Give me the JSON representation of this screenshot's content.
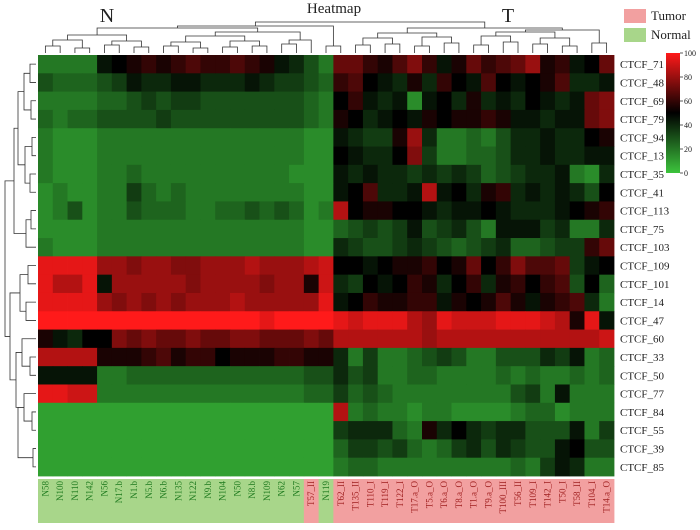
{
  "chart_data": {
    "type": "heatmap",
    "title": "Heatmap",
    "group_labels": {
      "normal_group": "N",
      "tumor_group": "T"
    },
    "legend": {
      "groups": [
        {
          "label": "Tumor",
          "color": "#f2a0a0"
        },
        {
          "label": "Normal",
          "color": "#a8d68a"
        }
      ],
      "scale_ticks": [
        "100",
        "80",
        "60",
        "40",
        "20",
        "0"
      ],
      "scale_min": 0,
      "scale_max": 100,
      "scale_colors": {
        "low": "#3cc43c",
        "mid": "#000000",
        "high": "#ff1a1a"
      }
    },
    "rows": [
      "CTCF_71",
      "CTCF_48",
      "CTCF_69",
      "CTCF_79",
      "CTCF_94",
      "CTCF_13",
      "CTCF_35",
      "CTCF_41",
      "CTCF_113",
      "CTCF_75",
      "CTCF_103",
      "CTCF_109",
      "CTCF_101",
      "CTCF_14",
      "CTCF_47",
      "CTCF_60",
      "CTCF_33",
      "CTCF_50",
      "CTCF_77",
      "CTCF_84",
      "CTCF_55",
      "CTCF_39",
      "CTCF_85"
    ],
    "columns": [
      "N58",
      "N100",
      "N110",
      "N142",
      "N56",
      "N17.b",
      "N1.b",
      "N5.b",
      "N6.b",
      "N135",
      "N122",
      "N9.b",
      "N104",
      "N50",
      "N8.b",
      "N109",
      "N62",
      "N57",
      "T57_II",
      "N119",
      "T62_II",
      "T135_II",
      "T110_I",
      "T119_I",
      "T122_I",
      "T17.a_O",
      "T5.a_O",
      "T6.a_O",
      "T8.a_O",
      "T1.a_O",
      "T9.a_O",
      "T100_III",
      "T56_II",
      "T109_I",
      "T142_I",
      "T50_I",
      "T58_II",
      "T104_I",
      "T14.a_O"
    ],
    "column_groups": [
      "Normal",
      "Normal",
      "Normal",
      "Normal",
      "Normal",
      "Normal",
      "Normal",
      "Normal",
      "Normal",
      "Normal",
      "Normal",
      "Normal",
      "Normal",
      "Normal",
      "Normal",
      "Normal",
      "Normal",
      "Normal",
      "Tumor",
      "Normal",
      "Tumor",
      "Tumor",
      "Tumor",
      "Tumor",
      "Tumor",
      "Tumor",
      "Tumor",
      "Tumor",
      "Tumor",
      "Tumor",
      "Tumor",
      "Tumor",
      "Tumor",
      "Tumor",
      "Tumor",
      "Tumor",
      "Tumor",
      "Tumor",
      "Tumor"
    ],
    "values": [
      [
        20,
        20,
        20,
        20,
        45,
        50,
        55,
        60,
        55,
        60,
        65,
        60,
        60,
        65,
        60,
        55,
        45,
        40,
        30,
        20,
        70,
        70,
        60,
        55,
        65,
        75,
        60,
        45,
        55,
        70,
        60,
        65,
        70,
        80,
        55,
        60,
        45,
        50,
        70
      ],
      [
        30,
        25,
        25,
        25,
        30,
        35,
        45,
        40,
        40,
        45,
        45,
        40,
        40,
        40,
        45,
        40,
        35,
        35,
        30,
        25,
        60,
        65,
        50,
        45,
        40,
        55,
        40,
        60,
        50,
        45,
        65,
        50,
        45,
        50,
        55,
        65,
        40,
        40,
        45
      ],
      [
        20,
        20,
        20,
        20,
        25,
        25,
        30,
        35,
        30,
        35,
        35,
        30,
        30,
        30,
        30,
        30,
        30,
        30,
        25,
        20,
        50,
        60,
        45,
        40,
        45,
        15,
        45,
        50,
        40,
        55,
        40,
        45,
        40,
        50,
        45,
        40,
        45,
        70,
        75
      ],
      [
        25,
        20,
        25,
        25,
        30,
        30,
        30,
        30,
        35,
        30,
        30,
        30,
        30,
        30,
        30,
        30,
        30,
        30,
        25,
        20,
        55,
        50,
        40,
        45,
        50,
        45,
        55,
        50,
        55,
        55,
        60,
        55,
        45,
        45,
        40,
        45,
        45,
        70,
        75
      ],
      [
        20,
        15,
        15,
        15,
        20,
        20,
        20,
        20,
        20,
        20,
        20,
        20,
        20,
        20,
        20,
        20,
        20,
        20,
        15,
        15,
        45,
        40,
        35,
        35,
        55,
        80,
        40,
        20,
        20,
        25,
        20,
        30,
        40,
        40,
        45,
        40,
        40,
        50,
        55
      ],
      [
        20,
        15,
        15,
        15,
        20,
        20,
        20,
        20,
        20,
        20,
        20,
        20,
        20,
        20,
        20,
        20,
        20,
        20,
        15,
        15,
        50,
        45,
        40,
        40,
        50,
        75,
        35,
        20,
        20,
        25,
        25,
        30,
        40,
        40,
        45,
        40,
        40,
        45,
        45
      ],
      [
        20,
        15,
        15,
        15,
        20,
        20,
        25,
        20,
        20,
        20,
        20,
        20,
        20,
        20,
        20,
        20,
        20,
        15,
        15,
        15,
        45,
        40,
        45,
        40,
        40,
        35,
        40,
        35,
        40,
        35,
        25,
        30,
        35,
        40,
        40,
        45,
        20,
        15,
        40
      ],
      [
        15,
        20,
        15,
        15,
        20,
        20,
        35,
        25,
        20,
        25,
        20,
        20,
        20,
        20,
        20,
        20,
        20,
        20,
        15,
        15,
        45,
        50,
        65,
        40,
        40,
        45,
        85,
        45,
        50,
        40,
        55,
        60,
        40,
        45,
        40,
        45,
        40,
        30,
        50
      ],
      [
        15,
        20,
        30,
        15,
        20,
        20,
        30,
        25,
        25,
        25,
        20,
        20,
        25,
        25,
        30,
        25,
        30,
        25,
        15,
        20,
        85,
        50,
        55,
        55,
        50,
        50,
        45,
        40,
        45,
        45,
        50,
        45,
        40,
        40,
        40,
        45,
        50,
        55,
        60
      ],
      [
        15,
        15,
        15,
        15,
        20,
        20,
        20,
        20,
        20,
        20,
        20,
        20,
        20,
        20,
        20,
        20,
        20,
        20,
        15,
        15,
        25,
        30,
        35,
        30,
        35,
        45,
        30,
        35,
        40,
        30,
        20,
        45,
        45,
        45,
        35,
        40,
        20,
        20,
        40
      ],
      [
        20,
        15,
        15,
        15,
        20,
        20,
        20,
        20,
        20,
        20,
        20,
        20,
        20,
        20,
        20,
        20,
        20,
        20,
        15,
        15,
        40,
        35,
        30,
        30,
        35,
        40,
        35,
        30,
        25,
        30,
        35,
        40,
        25,
        25,
        30,
        35,
        35,
        60,
        70
      ],
      [
        95,
        95,
        95,
        95,
        80,
        80,
        75,
        80,
        80,
        75,
        75,
        80,
        80,
        80,
        85,
        80,
        80,
        80,
        85,
        90,
        50,
        50,
        45,
        50,
        55,
        55,
        60,
        50,
        55,
        70,
        50,
        60,
        75,
        65,
        65,
        70,
        35,
        45,
        50
      ],
      [
        95,
        85,
        85,
        95,
        45,
        80,
        80,
        80,
        80,
        80,
        75,
        80,
        80,
        80,
        80,
        75,
        80,
        80,
        55,
        90,
        40,
        35,
        50,
        45,
        50,
        60,
        55,
        40,
        50,
        60,
        40,
        55,
        60,
        50,
        60,
        65,
        30,
        50,
        25
      ],
      [
        95,
        95,
        95,
        95,
        80,
        75,
        80,
        75,
        80,
        75,
        80,
        80,
        80,
        85,
        80,
        80,
        80,
        80,
        80,
        95,
        45,
        50,
        60,
        55,
        55,
        60,
        60,
        45,
        55,
        50,
        55,
        65,
        55,
        45,
        55,
        60,
        65,
        40,
        20
      ],
      [
        100,
        100,
        100,
        100,
        100,
        100,
        100,
        100,
        100,
        100,
        100,
        100,
        100,
        100,
        100,
        95,
        100,
        100,
        100,
        100,
        95,
        90,
        95,
        95,
        95,
        85,
        80,
        95,
        90,
        90,
        90,
        95,
        95,
        95,
        90,
        85,
        55,
        95,
        45
      ],
      [
        55,
        45,
        40,
        50,
        50,
        75,
        70,
        75,
        70,
        70,
        75,
        70,
        70,
        75,
        75,
        70,
        70,
        70,
        75,
        70,
        85,
        85,
        85,
        85,
        85,
        85,
        80,
        85,
        85,
        85,
        85,
        85,
        85,
        85,
        85,
        85,
        85,
        85,
        90
      ],
      [
        85,
        85,
        85,
        85,
        55,
        55,
        55,
        60,
        65,
        55,
        60,
        60,
        50,
        55,
        55,
        55,
        60,
        60,
        55,
        55,
        40,
        20,
        35,
        20,
        20,
        25,
        30,
        35,
        30,
        20,
        20,
        30,
        30,
        30,
        40,
        35,
        45,
        20,
        25
      ],
      [
        45,
        45,
        45,
        45,
        20,
        20,
        25,
        25,
        25,
        25,
        25,
        25,
        25,
        25,
        25,
        25,
        25,
        25,
        30,
        30,
        40,
        30,
        35,
        20,
        20,
        25,
        25,
        20,
        20,
        20,
        20,
        25,
        20,
        25,
        20,
        20,
        25,
        20,
        25
      ],
      [
        95,
        95,
        90,
        90,
        20,
        20,
        20,
        20,
        20,
        20,
        20,
        20,
        20,
        20,
        20,
        20,
        20,
        20,
        25,
        25,
        35,
        25,
        30,
        25,
        20,
        20,
        20,
        20,
        20,
        20,
        20,
        20,
        30,
        35,
        20,
        45,
        20,
        20,
        20
      ],
      [
        10,
        10,
        10,
        10,
        10,
        10,
        10,
        10,
        10,
        10,
        10,
        10,
        10,
        10,
        10,
        10,
        10,
        10,
        10,
        10,
        85,
        20,
        25,
        20,
        20,
        15,
        20,
        20,
        15,
        15,
        15,
        15,
        20,
        25,
        25,
        15,
        20,
        20,
        20
      ],
      [
        10,
        10,
        10,
        10,
        10,
        10,
        10,
        10,
        10,
        10,
        10,
        10,
        10,
        10,
        10,
        10,
        10,
        10,
        10,
        10,
        35,
        40,
        40,
        40,
        25,
        20,
        55,
        40,
        50,
        40,
        35,
        40,
        40,
        30,
        30,
        30,
        45,
        20,
        35
      ],
      [
        10,
        10,
        10,
        10,
        10,
        10,
        10,
        10,
        10,
        10,
        10,
        10,
        10,
        10,
        10,
        10,
        10,
        10,
        10,
        10,
        25,
        35,
        35,
        30,
        35,
        25,
        20,
        25,
        35,
        40,
        30,
        40,
        35,
        30,
        30,
        45,
        50,
        30,
        30
      ],
      [
        10,
        10,
        10,
        10,
        10,
        10,
        10,
        10,
        10,
        10,
        10,
        10,
        10,
        10,
        10,
        10,
        10,
        10,
        10,
        10,
        20,
        25,
        25,
        20,
        20,
        20,
        20,
        20,
        20,
        20,
        20,
        20,
        25,
        20,
        35,
        45,
        40,
        20,
        20
      ]
    ]
  }
}
